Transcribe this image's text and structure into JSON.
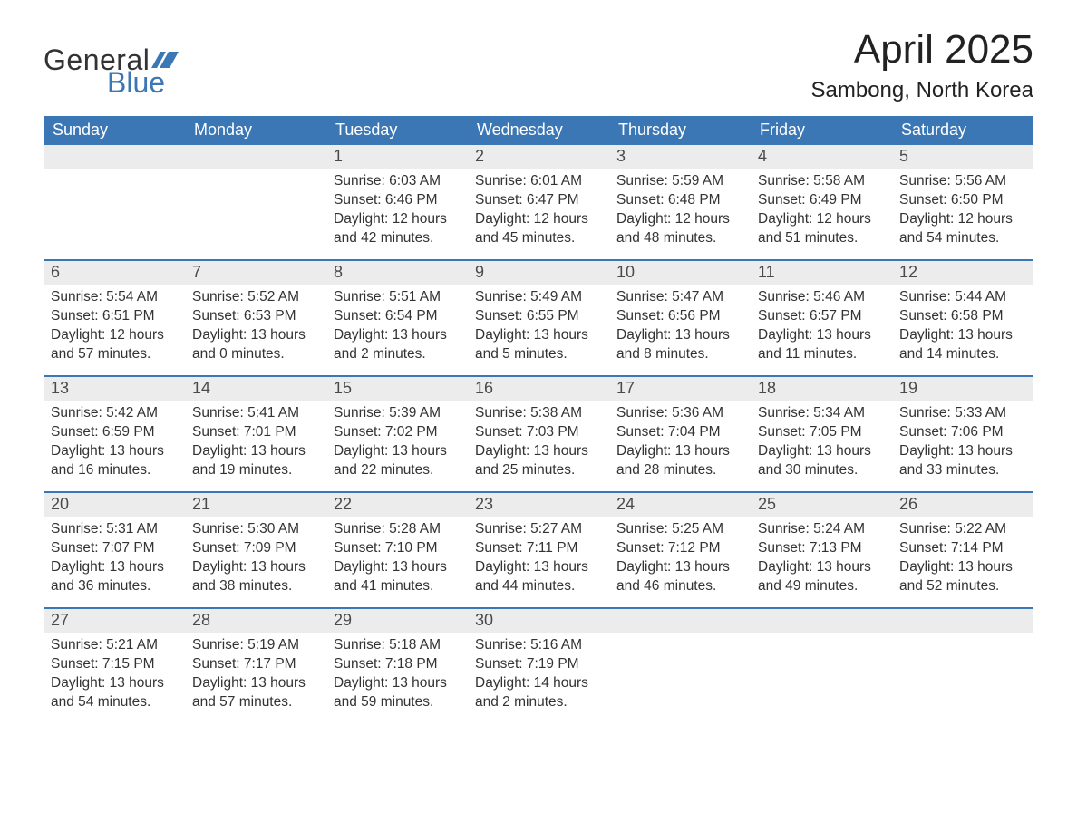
{
  "colors": {
    "header_bg": "#3b76b5",
    "header_text": "#ffffff",
    "daynum_bg": "#ececec",
    "daynum_text": "#4a4a4a",
    "body_text": "#333333",
    "week_border": "#3b76b5",
    "logo_blue": "#3b76b5",
    "page_bg": "#ffffff"
  },
  "typography": {
    "month_title_fontsize": 44,
    "location_fontsize": 24,
    "dow_fontsize": 18,
    "daynum_fontsize": 18,
    "body_fontsize": 15.5,
    "logo_fontsize": 32
  },
  "logo": {
    "line1": "General",
    "line2": "Blue"
  },
  "title": "April 2025",
  "location": "Sambong, North Korea",
  "days_of_week": [
    "Sunday",
    "Monday",
    "Tuesday",
    "Wednesday",
    "Thursday",
    "Friday",
    "Saturday"
  ],
  "label_sunrise": "Sunrise: ",
  "label_sunset": "Sunset: ",
  "label_daylight": "Daylight: ",
  "weeks": [
    [
      {
        "blank": true
      },
      {
        "blank": true
      },
      {
        "num": "1",
        "sunrise": "6:03 AM",
        "sunset": "6:46 PM",
        "daylight1": "12 hours",
        "daylight2": "and 42 minutes."
      },
      {
        "num": "2",
        "sunrise": "6:01 AM",
        "sunset": "6:47 PM",
        "daylight1": "12 hours",
        "daylight2": "and 45 minutes."
      },
      {
        "num": "3",
        "sunrise": "5:59 AM",
        "sunset": "6:48 PM",
        "daylight1": "12 hours",
        "daylight2": "and 48 minutes."
      },
      {
        "num": "4",
        "sunrise": "5:58 AM",
        "sunset": "6:49 PM",
        "daylight1": "12 hours",
        "daylight2": "and 51 minutes."
      },
      {
        "num": "5",
        "sunrise": "5:56 AM",
        "sunset": "6:50 PM",
        "daylight1": "12 hours",
        "daylight2": "and 54 minutes."
      }
    ],
    [
      {
        "num": "6",
        "sunrise": "5:54 AM",
        "sunset": "6:51 PM",
        "daylight1": "12 hours",
        "daylight2": "and 57 minutes."
      },
      {
        "num": "7",
        "sunrise": "5:52 AM",
        "sunset": "6:53 PM",
        "daylight1": "13 hours",
        "daylight2": "and 0 minutes."
      },
      {
        "num": "8",
        "sunrise": "5:51 AM",
        "sunset": "6:54 PM",
        "daylight1": "13 hours",
        "daylight2": "and 2 minutes."
      },
      {
        "num": "9",
        "sunrise": "5:49 AM",
        "sunset": "6:55 PM",
        "daylight1": "13 hours",
        "daylight2": "and 5 minutes."
      },
      {
        "num": "10",
        "sunrise": "5:47 AM",
        "sunset": "6:56 PM",
        "daylight1": "13 hours",
        "daylight2": "and 8 minutes."
      },
      {
        "num": "11",
        "sunrise": "5:46 AM",
        "sunset": "6:57 PM",
        "daylight1": "13 hours",
        "daylight2": "and 11 minutes."
      },
      {
        "num": "12",
        "sunrise": "5:44 AM",
        "sunset": "6:58 PM",
        "daylight1": "13 hours",
        "daylight2": "and 14 minutes."
      }
    ],
    [
      {
        "num": "13",
        "sunrise": "5:42 AM",
        "sunset": "6:59 PM",
        "daylight1": "13 hours",
        "daylight2": "and 16 minutes."
      },
      {
        "num": "14",
        "sunrise": "5:41 AM",
        "sunset": "7:01 PM",
        "daylight1": "13 hours",
        "daylight2": "and 19 minutes."
      },
      {
        "num": "15",
        "sunrise": "5:39 AM",
        "sunset": "7:02 PM",
        "daylight1": "13 hours",
        "daylight2": "and 22 minutes."
      },
      {
        "num": "16",
        "sunrise": "5:38 AM",
        "sunset": "7:03 PM",
        "daylight1": "13 hours",
        "daylight2": "and 25 minutes."
      },
      {
        "num": "17",
        "sunrise": "5:36 AM",
        "sunset": "7:04 PM",
        "daylight1": "13 hours",
        "daylight2": "and 28 minutes."
      },
      {
        "num": "18",
        "sunrise": "5:34 AM",
        "sunset": "7:05 PM",
        "daylight1": "13 hours",
        "daylight2": "and 30 minutes."
      },
      {
        "num": "19",
        "sunrise": "5:33 AM",
        "sunset": "7:06 PM",
        "daylight1": "13 hours",
        "daylight2": "and 33 minutes."
      }
    ],
    [
      {
        "num": "20",
        "sunrise": "5:31 AM",
        "sunset": "7:07 PM",
        "daylight1": "13 hours",
        "daylight2": "and 36 minutes."
      },
      {
        "num": "21",
        "sunrise": "5:30 AM",
        "sunset": "7:09 PM",
        "daylight1": "13 hours",
        "daylight2": "and 38 minutes."
      },
      {
        "num": "22",
        "sunrise": "5:28 AM",
        "sunset": "7:10 PM",
        "daylight1": "13 hours",
        "daylight2": "and 41 minutes."
      },
      {
        "num": "23",
        "sunrise": "5:27 AM",
        "sunset": "7:11 PM",
        "daylight1": "13 hours",
        "daylight2": "and 44 minutes."
      },
      {
        "num": "24",
        "sunrise": "5:25 AM",
        "sunset": "7:12 PM",
        "daylight1": "13 hours",
        "daylight2": "and 46 minutes."
      },
      {
        "num": "25",
        "sunrise": "5:24 AM",
        "sunset": "7:13 PM",
        "daylight1": "13 hours",
        "daylight2": "and 49 minutes."
      },
      {
        "num": "26",
        "sunrise": "5:22 AM",
        "sunset": "7:14 PM",
        "daylight1": "13 hours",
        "daylight2": "and 52 minutes."
      }
    ],
    [
      {
        "num": "27",
        "sunrise": "5:21 AM",
        "sunset": "7:15 PM",
        "daylight1": "13 hours",
        "daylight2": "and 54 minutes."
      },
      {
        "num": "28",
        "sunrise": "5:19 AM",
        "sunset": "7:17 PM",
        "daylight1": "13 hours",
        "daylight2": "and 57 minutes."
      },
      {
        "num": "29",
        "sunrise": "5:18 AM",
        "sunset": "7:18 PM",
        "daylight1": "13 hours",
        "daylight2": "and 59 minutes."
      },
      {
        "num": "30",
        "sunrise": "5:16 AM",
        "sunset": "7:19 PM",
        "daylight1": "14 hours",
        "daylight2": "and 2 minutes."
      },
      {
        "blank": true
      },
      {
        "blank": true
      },
      {
        "blank": true
      }
    ]
  ]
}
